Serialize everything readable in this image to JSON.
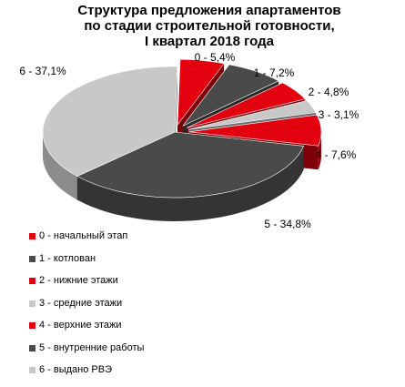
{
  "chart_data": {
    "type": "pie",
    "title_lines": [
      "Структура  предложения апартаментов",
      "по стадии строительной готовности,",
      "I квартал 2018 года"
    ],
    "slices": [
      {
        "legend": "0 - начальный этап",
        "label": "0 - 5,4%",
        "value": 5.4,
        "color": "#e3000f",
        "exploded": true
      },
      {
        "legend": "1 - котлован",
        "label": "1 - 7,2%",
        "value": 7.2,
        "color": "#4a4a4a",
        "exploded": true
      },
      {
        "legend": "2 - нижние этажи",
        "label": "2 - 4,8%",
        "value": 4.8,
        "color": "#e3000f",
        "exploded": true
      },
      {
        "legend": "3 - средние этажи",
        "label": "3 - 3,1%",
        "value": 3.1,
        "color": "#c8c8c8",
        "exploded": true
      },
      {
        "legend": "4 - верхние этажи",
        "label": "4 - 7,6%",
        "value": 7.6,
        "color": "#e3000f",
        "exploded": true
      },
      {
        "legend": "5 - внутренние работы",
        "label": "5 - 34,8%",
        "value": 34.8,
        "color": "#4a4a4a",
        "exploded": false
      },
      {
        "legend": "6 - выдано РВЭ",
        "label": "6 - 37,1%",
        "value": 37.1,
        "color": "#c8c8c8",
        "exploded": false
      }
    ],
    "legend_position": "bottom-left",
    "style": "3d-exploded-pie"
  }
}
